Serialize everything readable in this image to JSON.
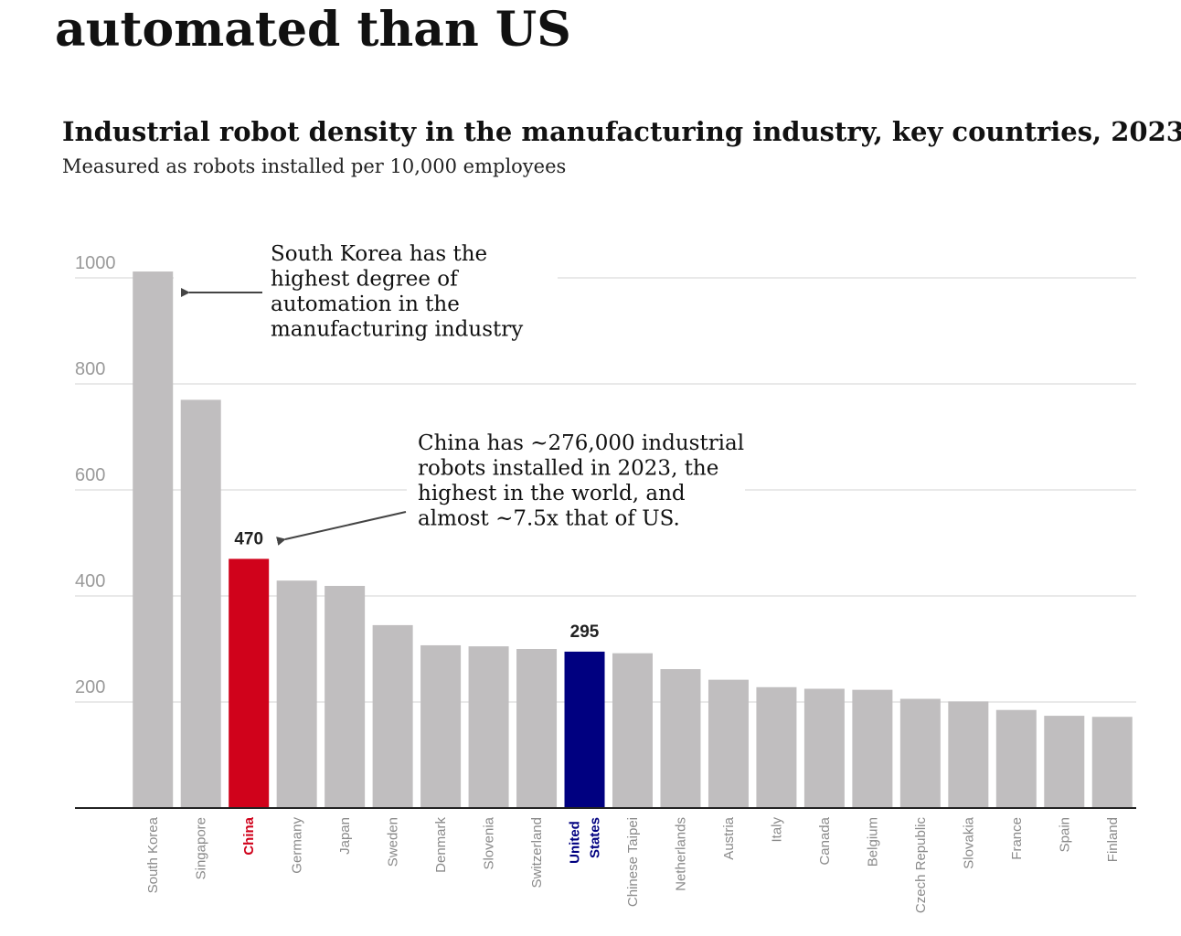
{
  "chart_data": {
    "type": "bar",
    "heading": "automated than US",
    "title": "Industrial robot density in the manufacturing industry, key countries, 2023",
    "subtitle": "Measured as robots installed per 10,000 employees",
    "categories": [
      "South Korea",
      "Singapore",
      "China",
      "Germany",
      "Japan",
      "Sweden",
      "Denmark",
      "Slovenia",
      "Switzerland",
      "United States",
      "Chinese Taipei",
      "Netherlands",
      "Austria",
      "Italy",
      "Canada",
      "Belgium",
      "Czech Republic",
      "Slovakia",
      "France",
      "Spain",
      "Finland"
    ],
    "values": [
      1012,
      770,
      470,
      429,
      419,
      345,
      307,
      305,
      300,
      295,
      292,
      262,
      242,
      228,
      225,
      223,
      206,
      201,
      185,
      174,
      172
    ],
    "color": "#c0bebf",
    "colors": [
      "#c0bebf",
      "#c0bebf",
      "#d0021b",
      "#c0bebf",
      "#c0bebf",
      "#c0bebf",
      "#c0bebf",
      "#c0bebf",
      "#c0bebf",
      "#000080",
      "#c0bebf",
      "#c0bebf",
      "#c0bebf",
      "#c0bebf",
      "#c0bebf",
      "#c0bebf",
      "#c0bebf",
      "#c0bebf",
      "#c0bebf",
      "#c0bebf",
      "#c0bebf"
    ],
    "ylim": [
      0,
      1020
    ],
    "yticks": [
      200,
      400,
      600,
      800,
      1000
    ],
    "grid": true,
    "annotations": [
      {
        "lines": [
          "South Korea has the",
          "highest degree of",
          "automation in the",
          "manufacturing industry"
        ]
      },
      {
        "lines": [
          "China has ~276,000 industrial",
          "robots installed in 2023, the",
          "highest in the world, and",
          "almost ~7.5x that of US."
        ]
      }
    ]
  }
}
